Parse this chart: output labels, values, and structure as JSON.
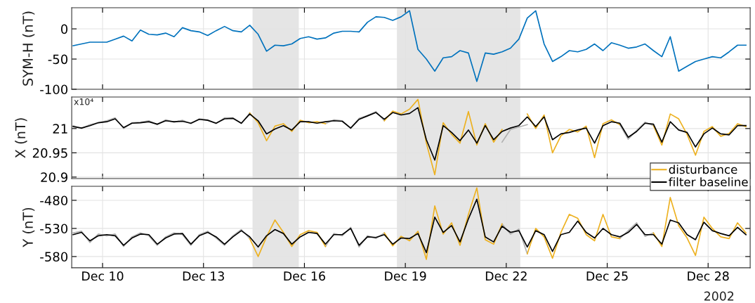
{
  "chart_data": [
    {
      "type": "line",
      "ylabel": "SYM-H (nT)",
      "tick_labels": "y",
      "grid": true,
      "xlim": [
        "2002-12-09T02:00",
        "2002-12-29T06:00"
      ],
      "xticks": [
        {
          "value": "2002-12-10",
          "label": null
        },
        {
          "value": "2002-12-13",
          "label": null
        },
        {
          "value": "2002-12-16",
          "label": null
        },
        {
          "value": "2002-12-19",
          "label": null
        },
        {
          "value": "2002-12-22",
          "label": null
        },
        {
          "value": "2002-12-25",
          "label": null
        },
        {
          "value": "2002-12-28",
          "label": null
        }
      ],
      "ylim": [
        -100,
        35
      ],
      "yticks": [
        -100,
        -50,
        0
      ],
      "bands": [
        {
          "axis": "x",
          "from": "2002-12-14T11:00",
          "to": "2002-12-15T20:00",
          "color": "#e5e5e5"
        },
        {
          "axis": "x",
          "from": "2002-12-18T18:00",
          "to": "2002-12-22T10:00",
          "color": "#e5e5e5"
        }
      ],
      "x": [
        "2002-12-09T03:00",
        "2002-12-09T09:00",
        "2002-12-09T15:00",
        "2002-12-09T21:00",
        "2002-12-10T03:00",
        "2002-12-10T09:00",
        "2002-12-10T15:00",
        "2002-12-10T21:00",
        "2002-12-11T03:00",
        "2002-12-11T09:00",
        "2002-12-11T15:00",
        "2002-12-11T21:00",
        "2002-12-12T03:00",
        "2002-12-12T09:00",
        "2002-12-12T15:00",
        "2002-12-12T21:00",
        "2002-12-13T03:00",
        "2002-12-13T09:00",
        "2002-12-13T15:00",
        "2002-12-13T21:00",
        "2002-12-14T03:00",
        "2002-12-14T09:00",
        "2002-12-14T15:00",
        "2002-12-14T21:00",
        "2002-12-15T03:00",
        "2002-12-15T09:00",
        "2002-12-15T15:00",
        "2002-12-15T21:00",
        "2002-12-16T03:00",
        "2002-12-16T09:00",
        "2002-12-16T15:00",
        "2002-12-16T21:00",
        "2002-12-17T03:00",
        "2002-12-17T09:00",
        "2002-12-17T15:00",
        "2002-12-17T21:00",
        "2002-12-18T03:00",
        "2002-12-18T09:00",
        "2002-12-18T15:00",
        "2002-12-18T21:00",
        "2002-12-19T03:00",
        "2002-12-19T09:00",
        "2002-12-19T15:00",
        "2002-12-19T21:00",
        "2002-12-20T03:00",
        "2002-12-20T09:00",
        "2002-12-20T15:00",
        "2002-12-20T21:00",
        "2002-12-21T03:00",
        "2002-12-21T09:00",
        "2002-12-21T15:00",
        "2002-12-21T21:00",
        "2002-12-22T03:00",
        "2002-12-22T09:00",
        "2002-12-22T15:00",
        "2002-12-22T21:00",
        "2002-12-23T03:00",
        "2002-12-23T09:00",
        "2002-12-23T15:00",
        "2002-12-23T21:00",
        "2002-12-24T03:00",
        "2002-12-24T09:00",
        "2002-12-24T15:00",
        "2002-12-24T21:00",
        "2002-12-25T03:00",
        "2002-12-25T09:00",
        "2002-12-25T15:00",
        "2002-12-25T21:00",
        "2002-12-26T03:00",
        "2002-12-26T09:00",
        "2002-12-26T15:00",
        "2002-12-26T21:00",
        "2002-12-27T03:00",
        "2002-12-27T09:00",
        "2002-12-27T15:00",
        "2002-12-27T21:00",
        "2002-12-28T03:00",
        "2002-12-28T09:00",
        "2002-12-28T15:00",
        "2002-12-28T21:00",
        "2002-12-29T03:00"
      ],
      "series": [
        {
          "color": "#0072bd",
          "values": [
            -28,
            -25,
            -22,
            -22,
            -22,
            -17,
            -12,
            -20,
            -2,
            -9,
            -10,
            -7,
            -13,
            2,
            -3,
            -5,
            -11,
            -3,
            4,
            -3,
            -5,
            6,
            -9,
            -37,
            -27,
            -28,
            -25,
            -16,
            -13,
            -17,
            -15,
            -7,
            -4,
            -4,
            -5,
            11,
            20,
            19,
            14,
            20,
            30,
            -34,
            -50,
            -70,
            -48,
            -46,
            -36,
            -40,
            -87,
            -40,
            -42,
            -38,
            -32,
            -17,
            18,
            30,
            -25,
            -54,
            -46,
            -36,
            -38,
            -34,
            -25,
            -36,
            -23,
            -27,
            -32,
            -30,
            -25,
            -36,
            -46,
            -13,
            -70,
            -62,
            -54,
            -50,
            -46,
            -48,
            -38,
            -27,
            -27
          ]
        }
      ]
    },
    {
      "type": "line",
      "ylabel": "X (nT)",
      "tick_labels": "y",
      "grid": true,
      "legend": "bottom right",
      "annotations": [
        "x10⁴"
      ],
      "xlim": [
        "2002-12-09T02:00",
        "2002-12-29T06:00"
      ],
      "xticks": [
        {
          "value": "2002-12-10",
          "label": null
        },
        {
          "value": "2002-12-13",
          "label": null
        },
        {
          "value": "2002-12-16",
          "label": null
        },
        {
          "value": "2002-12-19",
          "label": null
        },
        {
          "value": "2002-12-22",
          "label": null
        },
        {
          "value": "2002-12-25",
          "label": null
        },
        {
          "value": "2002-12-28",
          "label": null
        }
      ],
      "ylim": [
        20.897,
        21.065
      ],
      "yticks": [
        20.9,
        20.95,
        21
      ],
      "bands": [
        {
          "axis": "x",
          "from": "2002-12-14T11:00",
          "to": "2002-12-15T20:00",
          "color": "#e5e5e5"
        },
        {
          "axis": "x",
          "from": "2002-12-18T18:00",
          "to": "2002-12-22T10:00",
          "color": "#e5e5e5"
        }
      ],
      "x": [
        "2002-12-09T03:00",
        "2002-12-09T09:00",
        "2002-12-09T15:00",
        "2002-12-09T21:00",
        "2002-12-10T03:00",
        "2002-12-10T09:00",
        "2002-12-10T15:00",
        "2002-12-10T21:00",
        "2002-12-11T03:00",
        "2002-12-11T09:00",
        "2002-12-11T15:00",
        "2002-12-11T21:00",
        "2002-12-12T03:00",
        "2002-12-12T09:00",
        "2002-12-12T15:00",
        "2002-12-12T21:00",
        "2002-12-13T03:00",
        "2002-12-13T09:00",
        "2002-12-13T15:00",
        "2002-12-13T21:00",
        "2002-12-14T03:00",
        "2002-12-14T09:00",
        "2002-12-14T15:00",
        "2002-12-14T21:00",
        "2002-12-15T03:00",
        "2002-12-15T09:00",
        "2002-12-15T15:00",
        "2002-12-15T21:00",
        "2002-12-16T03:00",
        "2002-12-16T09:00",
        "2002-12-16T15:00",
        "2002-12-16T21:00",
        "2002-12-17T03:00",
        "2002-12-17T09:00",
        "2002-12-17T15:00",
        "2002-12-17T21:00",
        "2002-12-18T03:00",
        "2002-12-18T09:00",
        "2002-12-18T15:00",
        "2002-12-18T21:00",
        "2002-12-19T03:00",
        "2002-12-19T09:00",
        "2002-12-19T15:00",
        "2002-12-19T21:00",
        "2002-12-20T03:00",
        "2002-12-20T09:00",
        "2002-12-20T15:00",
        "2002-12-20T21:00",
        "2002-12-21T03:00",
        "2002-12-21T09:00",
        "2002-12-21T15:00",
        "2002-12-21T21:00",
        "2002-12-22T03:00",
        "2002-12-22T09:00",
        "2002-12-22T15:00",
        "2002-12-22T21:00",
        "2002-12-23T03:00",
        "2002-12-23T09:00",
        "2002-12-23T15:00",
        "2002-12-23T21:00",
        "2002-12-24T03:00",
        "2002-12-24T09:00",
        "2002-12-24T15:00",
        "2002-12-24T21:00",
        "2002-12-25T03:00",
        "2002-12-25T09:00",
        "2002-12-25T15:00",
        "2002-12-25T21:00",
        "2002-12-26T03:00",
        "2002-12-26T09:00",
        "2002-12-26T15:00",
        "2002-12-26T21:00",
        "2002-12-27T03:00",
        "2002-12-27T09:00",
        "2002-12-27T15:00",
        "2002-12-27T21:00",
        "2002-12-28T03:00",
        "2002-12-28T09:00",
        "2002-12-28T15:00",
        "2002-12-28T21:00",
        "2002-12-29T03:00"
      ],
      "series": [
        {
          "color": "#b0b0b0",
          "values": [
            21.006,
            21.0,
            21.008,
            21.012,
            21.016,
            21.022,
            21.0,
            21.012,
            21.013,
            21.016,
            21.008,
            21.018,
            21.013,
            21.017,
            21.01,
            21.02,
            21.018,
            21.01,
            21.022,
            21.022,
            21.01,
            21.032,
            null,
            null,
            null,
            null,
            null,
            null,
            null,
            null,
            21.01,
            21.018,
            21.016,
            21.0,
            21.021,
            21.027,
            21.035,
            21.016,
            null,
            null,
            null,
            null,
            null,
            null,
            null,
            null,
            null,
            null,
            null,
            null,
            null,
            20.972,
            20.998,
            21.003,
            21.008,
            null,
            null,
            null,
            null,
            null,
            null,
            null,
            null,
            null,
            null,
            21.008,
            20.978,
            20.996,
            21.013,
            21.006,
            null,
            null,
            null,
            null,
            null,
            null,
            null,
            null,
            null,
            null,
            null
          ]
        },
        {
          "name": "disturbance",
          "color": "#edb120",
          "values": [
            null,
            null,
            null,
            null,
            null,
            null,
            null,
            null,
            null,
            null,
            null,
            null,
            null,
            null,
            null,
            null,
            null,
            null,
            null,
            null,
            null,
            21.032,
            21.012,
            20.975,
            21.005,
            21.01,
            20.994,
            21.017,
            21.012,
            21.014,
            21.01,
            null,
            null,
            null,
            null,
            null,
            null,
            21.016,
            21.036,
            21.03,
            21.04,
            21.06,
            20.97,
            20.905,
            21.012,
            20.988,
            20.97,
            21.035,
            20.966,
            21.01,
            20.972,
            20.998,
            null,
            null,
            21.03,
            21.0,
            21.028,
            20.95,
            20.985,
            20.998,
            20.993,
            21.005,
            20.94,
            21.01,
            21.018,
            21.008,
            null,
            null,
            null,
            21.006,
            20.966,
            21.03,
            21.02,
            20.988,
            20.945,
            20.994,
            21.004,
            20.984,
            20.99,
            21.01,
            21.004
          ]
        },
        {
          "name": "filter baseline",
          "color": "#000000",
          "values": [
            21.004,
            21.001,
            21.006,
            21.012,
            21.014,
            21.02,
            21.002,
            21.011,
            21.012,
            21.014,
            21.009,
            21.016,
            21.014,
            21.015,
            21.011,
            21.019,
            21.017,
            21.011,
            21.02,
            21.021,
            21.011,
            21.03,
            21.016,
            20.989,
            20.999,
            21.006,
            20.997,
            21.014,
            21.014,
            21.011,
            21.014,
            21.016,
            21.015,
            21.001,
            21.019,
            21.026,
            21.033,
            21.019,
            21.033,
            21.028,
            21.031,
            21.043,
            20.977,
            20.935,
            21.006,
            20.992,
            20.975,
            20.997,
            20.97,
            21.006,
            20.977,
            20.994,
            21.001,
            21.006,
            21.024,
            21.004,
            21.024,
            20.977,
            20.989,
            20.992,
            20.997,
            21.001,
            20.97,
            21.006,
            21.014,
            21.011,
            20.982,
            20.994,
            21.011,
            21.009,
            20.972,
            21.014,
            20.997,
            20.992,
            20.962,
            20.989,
            21.001,
            20.989,
            20.987,
            21.006,
            21.006
          ]
        }
      ]
    },
    {
      "type": "line",
      "ylabel": "Y (nT)",
      "grid": true,
      "annotations": [
        "2002"
      ],
      "xlim": [
        "2002-12-09T02:00",
        "2002-12-29T06:00"
      ],
      "xticks": [
        {
          "value": "2002-12-10",
          "label": "Dec 10"
        },
        {
          "value": "2002-12-13",
          "label": "Dec 13"
        },
        {
          "value": "2002-12-16",
          "label": "Dec 16"
        },
        {
          "value": "2002-12-19",
          "label": "Dec 19"
        },
        {
          "value": "2002-12-22",
          "label": "Dec 22"
        },
        {
          "value": "2002-12-25",
          "label": "Dec 25"
        },
        {
          "value": "2002-12-28",
          "label": "Dec 28"
        }
      ],
      "ylim": [
        -600,
        -455
      ],
      "yticks": [
        -580,
        -530,
        -480
      ],
      "bands": [
        {
          "axis": "x",
          "from": "2002-12-14T11:00",
          "to": "2002-12-15T20:00",
          "color": "#e5e5e5"
        },
        {
          "axis": "x",
          "from": "2002-12-18T18:00",
          "to": "2002-12-22T10:00",
          "color": "#e5e5e5"
        }
      ],
      "x": [
        "2002-12-09T03:00",
        "2002-12-09T09:00",
        "2002-12-09T15:00",
        "2002-12-09T21:00",
        "2002-12-10T03:00",
        "2002-12-10T09:00",
        "2002-12-10T15:00",
        "2002-12-10T21:00",
        "2002-12-11T03:00",
        "2002-12-11T09:00",
        "2002-12-11T15:00",
        "2002-12-11T21:00",
        "2002-12-12T03:00",
        "2002-12-12T09:00",
        "2002-12-12T15:00",
        "2002-12-12T21:00",
        "2002-12-13T03:00",
        "2002-12-13T09:00",
        "2002-12-13T15:00",
        "2002-12-13T21:00",
        "2002-12-14T03:00",
        "2002-12-14T09:00",
        "2002-12-14T15:00",
        "2002-12-14T21:00",
        "2002-12-15T03:00",
        "2002-12-15T09:00",
        "2002-12-15T15:00",
        "2002-12-15T21:00",
        "2002-12-16T03:00",
        "2002-12-16T09:00",
        "2002-12-16T15:00",
        "2002-12-16T21:00",
        "2002-12-17T03:00",
        "2002-12-17T09:00",
        "2002-12-17T15:00",
        "2002-12-17T21:00",
        "2002-12-18T03:00",
        "2002-12-18T09:00",
        "2002-12-18T15:00",
        "2002-12-18T21:00",
        "2002-12-19T03:00",
        "2002-12-19T09:00",
        "2002-12-19T15:00",
        "2002-12-19T21:00",
        "2002-12-20T03:00",
        "2002-12-20T09:00",
        "2002-12-20T15:00",
        "2002-12-20T21:00",
        "2002-12-21T03:00",
        "2002-12-21T09:00",
        "2002-12-21T15:00",
        "2002-12-21T21:00",
        "2002-12-22T03:00",
        "2002-12-22T09:00",
        "2002-12-22T15:00",
        "2002-12-22T21:00",
        "2002-12-23T03:00",
        "2002-12-23T09:00",
        "2002-12-23T15:00",
        "2002-12-23T21:00",
        "2002-12-24T03:00",
        "2002-12-24T09:00",
        "2002-12-24T15:00",
        "2002-12-24T21:00",
        "2002-12-25T03:00",
        "2002-12-25T09:00",
        "2002-12-25T15:00",
        "2002-12-25T21:00",
        "2002-12-26T03:00",
        "2002-12-26T09:00",
        "2002-12-26T15:00",
        "2002-12-26T21:00",
        "2002-12-27T03:00",
        "2002-12-27T09:00",
        "2002-12-27T15:00",
        "2002-12-27T21:00",
        "2002-12-28T03:00",
        "2002-12-28T09:00",
        "2002-12-28T15:00",
        "2002-12-28T21:00",
        "2002-12-29T03:00"
      ],
      "series": [
        {
          "color": "#b0b0b0",
          "values": [
            -538,
            -535,
            -555,
            -540,
            -543,
            -540,
            -562,
            -545,
            -538,
            -543,
            -560,
            -545,
            -538,
            -541,
            -560,
            -541,
            -535,
            -547,
            -560,
            -543,
            -532,
            -548,
            null,
            null,
            null,
            null,
            null,
            null,
            null,
            null,
            -562,
            -539,
            -543,
            -528,
            -563,
            -543,
            -548,
            -538,
            null,
            null,
            null,
            null,
            null,
            null,
            null,
            null,
            null,
            null,
            null,
            null,
            null,
            -522,
            -540,
            -531,
            -575,
            null,
            null,
            null,
            null,
            null,
            null,
            null,
            null,
            null,
            null,
            -548,
            -534,
            -520,
            -544,
            -538,
            null,
            null,
            null,
            null,
            null,
            null,
            null,
            null,
            null,
            null,
            null
          ]
        },
        {
          "color": "#edb120",
          "values": [
            null,
            null,
            null,
            null,
            null,
            null,
            null,
            null,
            null,
            null,
            null,
            null,
            null,
            null,
            null,
            null,
            null,
            null,
            null,
            null,
            null,
            -548,
            -580,
            -545,
            -515,
            -537,
            -562,
            -541,
            -534,
            -537,
            -562,
            null,
            null,
            null,
            null,
            null,
            null,
            -538,
            -561,
            -544,
            -552,
            -535,
            -585,
            -490,
            -540,
            -520,
            -560,
            -505,
            -458,
            -550,
            -558,
            -522,
            null,
            null,
            -575,
            -530,
            -545,
            -583,
            -537,
            -505,
            -512,
            -541,
            -552,
            -505,
            -545,
            -548,
            null,
            null,
            null,
            -538,
            -562,
            -475,
            -525,
            -547,
            -578,
            -510,
            -530,
            -545,
            -548,
            -520,
            -538
          ]
        },
        {
          "color": "#000000",
          "values": [
            -541,
            -537,
            -552,
            -543,
            -541,
            -543,
            -560,
            -547,
            -540,
            -541,
            -558,
            -547,
            -540,
            -539,
            -558,
            -543,
            -537,
            -545,
            -558,
            -545,
            -534,
            -545,
            -563,
            -543,
            -532,
            -539,
            -558,
            -545,
            -537,
            -539,
            -558,
            -541,
            -541,
            -530,
            -560,
            -545,
            -546,
            -541,
            -558,
            -547,
            -548,
            -539,
            -573,
            -510,
            -537,
            -525,
            -554,
            -513,
            -478,
            -545,
            -554,
            -526,
            -537,
            -534,
            -563,
            -534,
            -541,
            -571,
            -541,
            -537,
            -517,
            -537,
            -547,
            -530,
            -541,
            -545,
            -537,
            -523,
            -541,
            -541,
            -558,
            -515,
            -520,
            -541,
            -550,
            -519,
            -534,
            -539,
            -543,
            -528,
            -541
          ]
        }
      ]
    }
  ]
}
